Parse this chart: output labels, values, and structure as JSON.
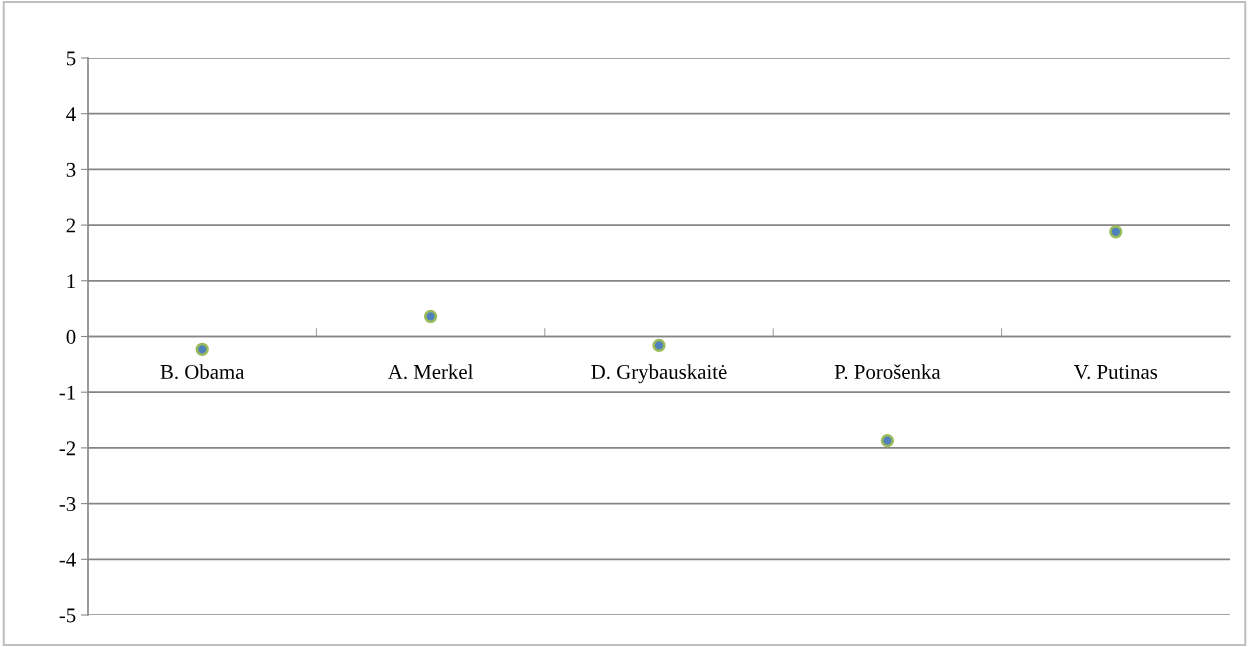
{
  "chart_data": {
    "type": "scatter",
    "categories": [
      "B. Obama",
      "A. Merkel",
      "D. Grybauskaitė",
      "P. Porošenka",
      "V. Putinas"
    ],
    "values": [
      -0.23,
      0.36,
      -0.16,
      -1.87,
      1.88
    ],
    "color": "#4f81bd",
    "marker": "circle",
    "ylim": [
      -5,
      5
    ],
    "yticks": [
      -5,
      -4,
      -3,
      -2,
      -1,
      0,
      1,
      2,
      3,
      4,
      5
    ],
    "grid": "y",
    "legend": false
  }
}
